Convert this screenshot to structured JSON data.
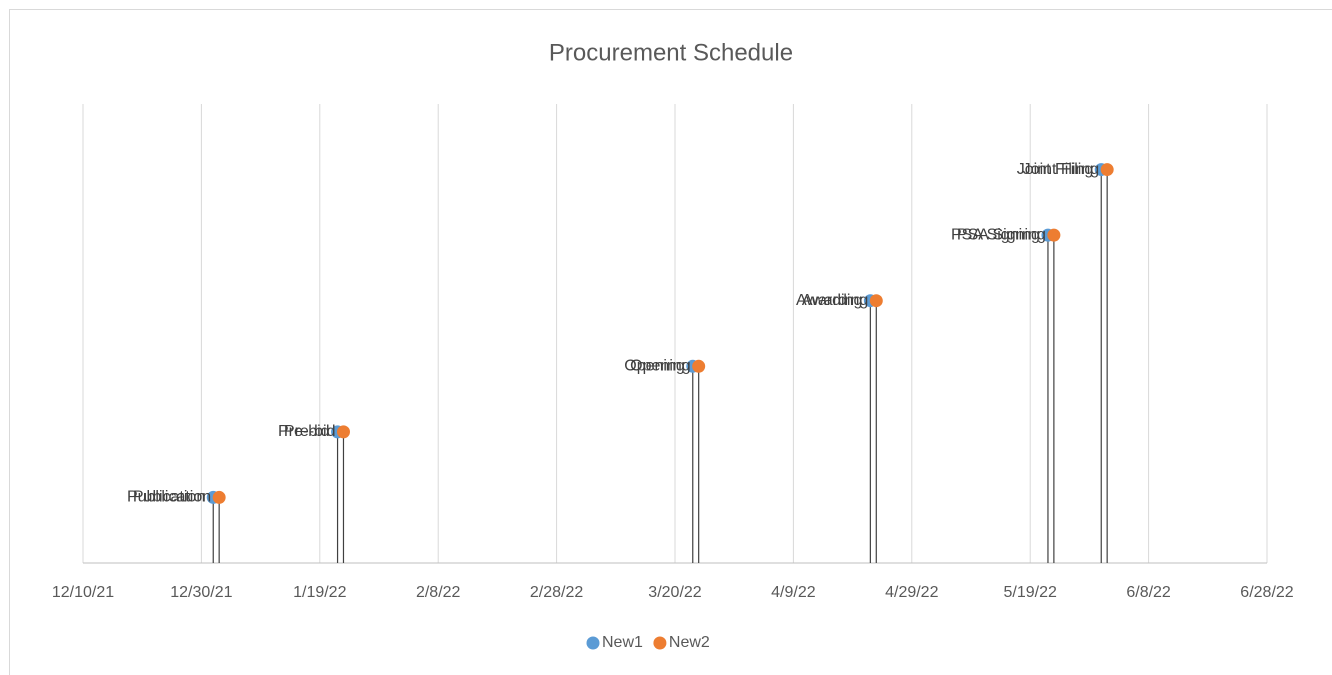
{
  "chart_data": {
    "type": "scatter",
    "title": "Procurement Schedule",
    "xlim": [
      "2021-12-10",
      "2022-06-28"
    ],
    "xticks": [
      {
        "value": "2021-12-10",
        "label": "12/10/21"
      },
      {
        "value": "2021-12-30",
        "label": "12/30/21"
      },
      {
        "value": "2022-01-19",
        "label": "1/19/22"
      },
      {
        "value": "2022-02-08",
        "label": "2/8/22"
      },
      {
        "value": "2022-02-28",
        "label": "2/28/22"
      },
      {
        "value": "2022-03-20",
        "label": "3/20/22"
      },
      {
        "value": "2022-04-09",
        "label": "4/9/22"
      },
      {
        "value": "2022-04-29",
        "label": "4/29/22"
      },
      {
        "value": "2022-05-19",
        "label": "5/19/22"
      },
      {
        "value": "2022-06-08",
        "label": "6/8/22"
      },
      {
        "value": "2022-06-28",
        "label": "6/28/22"
      }
    ],
    "ylim": [
      0,
      7
    ],
    "grid": true,
    "legend": "bottom",
    "series": [
      {
        "name": "New1",
        "color": "#5b9bd5",
        "x": [
          "2022-01-01",
          "2022-01-22",
          "2022-03-23",
          "2022-04-22",
          "2022-05-22",
          "2022-05-31"
        ],
        "values": [
          1,
          2,
          3,
          4,
          5,
          6
        ],
        "labels": [
          "Publication",
          "Pre-bid",
          "Opening",
          "Awarding",
          "PSA Signing",
          "Joint Filing"
        ]
      },
      {
        "name": "New2",
        "color": "#ed7d31",
        "x": [
          "2022-01-02",
          "2022-01-23",
          "2022-03-24",
          "2022-04-23",
          "2022-05-23",
          "2022-06-01"
        ],
        "values": [
          1,
          2,
          3,
          4,
          5,
          6
        ],
        "labels": [
          "Publication",
          "Pre-bid",
          "Opening",
          "Awarding",
          "PSA Signing",
          "Joint Filing"
        ]
      }
    ]
  }
}
